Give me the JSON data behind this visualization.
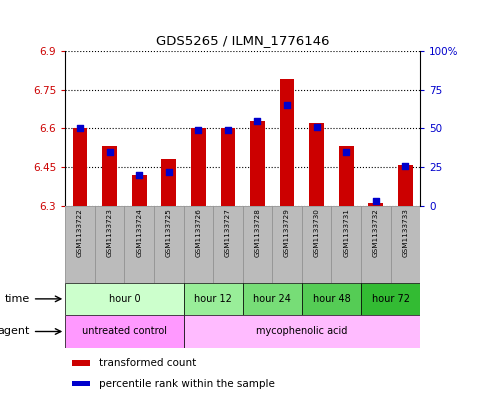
{
  "title": "GDS5265 / ILMN_1776146",
  "samples": [
    "GSM1133722",
    "GSM1133723",
    "GSM1133724",
    "GSM1133725",
    "GSM1133726",
    "GSM1133727",
    "GSM1133728",
    "GSM1133729",
    "GSM1133730",
    "GSM1133731",
    "GSM1133732",
    "GSM1133733"
  ],
  "transformed_count": [
    6.6,
    6.53,
    6.42,
    6.48,
    6.6,
    6.6,
    6.63,
    6.79,
    6.62,
    6.53,
    6.31,
    6.46
  ],
  "percentile_rank": [
    50,
    35,
    20,
    22,
    49,
    49,
    55,
    65,
    51,
    35,
    3,
    26
  ],
  "ylim_left": [
    6.3,
    6.9
  ],
  "ylim_right": [
    0,
    100
  ],
  "yticks_left": [
    6.3,
    6.45,
    6.6,
    6.75,
    6.9
  ],
  "yticks_right": [
    0,
    25,
    50,
    75,
    100
  ],
  "ytick_labels_left": [
    "6.3",
    "6.45",
    "6.6",
    "6.75",
    "6.9"
  ],
  "ytick_labels_right": [
    "0",
    "25",
    "50",
    "75",
    "100%"
  ],
  "bar_color": "#cc0000",
  "dot_color": "#0000cc",
  "bar_bottom": 6.3,
  "bar_width": 0.5,
  "dot_size": 18,
  "time_groups": [
    {
      "label": "hour 0",
      "start": 0,
      "end": 4,
      "color": "#ccffcc"
    },
    {
      "label": "hour 12",
      "start": 4,
      "end": 6,
      "color": "#99ee99"
    },
    {
      "label": "hour 24",
      "start": 6,
      "end": 8,
      "color": "#77dd77"
    },
    {
      "label": "hour 48",
      "start": 8,
      "end": 10,
      "color": "#55cc55"
    },
    {
      "label": "hour 72",
      "start": 10,
      "end": 12,
      "color": "#33bb33"
    }
  ],
  "agent_groups": [
    {
      "label": "untreated control",
      "start": 0,
      "end": 4,
      "color": "#ff99ff"
    },
    {
      "label": "mycophenolic acid",
      "start": 4,
      "end": 12,
      "color": "#ffbbff"
    }
  ],
  "legend_bar_label": "transformed count",
  "legend_dot_label": "percentile rank within the sample",
  "time_label": "time",
  "agent_label": "agent",
  "bg_color": "#ffffff",
  "plot_bg": "#ffffff",
  "sample_bg": "#bbbbbb",
  "grid_color": "#000000",
  "left_tick_color": "#cc0000",
  "right_tick_color": "#0000cc"
}
